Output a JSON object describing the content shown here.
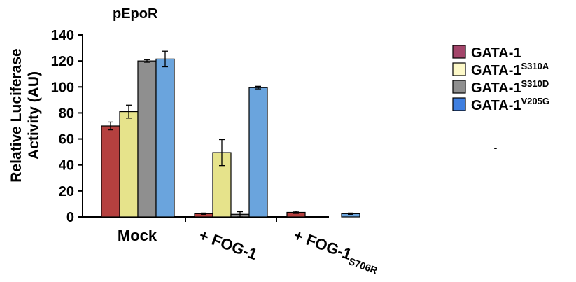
{
  "chart_data": {
    "type": "bar",
    "title": "pEpoR",
    "xlabel": "",
    "ylabel_lines": [
      "Relative Luciferase",
      "Activity (AU)"
    ],
    "ylim": [
      0,
      140
    ],
    "yticks": [
      0,
      20,
      40,
      60,
      80,
      100,
      120,
      140
    ],
    "categories": [
      {
        "main": "Mock",
        "sup": ""
      },
      {
        "main": "+ FOG-1",
        "sup": ""
      },
      {
        "main": "+ FOG-1",
        "sup": "S706R"
      }
    ],
    "series": [
      {
        "name": "GATA-1",
        "sup": "",
        "legend_color": "#a3456a",
        "bar_color": "#b5403f",
        "values": [
          70,
          2.5,
          3.5
        ],
        "errors": [
          3,
          0.5,
          0.8
        ]
      },
      {
        "name": "GATA-1",
        "sup": "S310A",
        "legend_color": "#fdf9c8",
        "bar_color": "#e6e38b",
        "values": [
          81,
          49.5,
          null
        ],
        "errors": [
          5,
          10,
          null
        ]
      },
      {
        "name": "GATA-1",
        "sup": "S310D",
        "legend_color": "#8f8f8f",
        "bar_color": "#8f8f8f",
        "values": [
          120,
          2,
          null
        ],
        "errors": [
          1,
          2,
          null
        ]
      },
      {
        "name": "GATA-1",
        "sup": "V205G",
        "legend_color": "#3f7fe0",
        "bar_color": "#6aa4dd",
        "values": [
          121.5,
          99.5,
          2.5
        ],
        "errors": [
          6,
          1,
          0.5
        ]
      }
    ],
    "grid": false,
    "legend_position": "right",
    "stray_mark": "-"
  }
}
